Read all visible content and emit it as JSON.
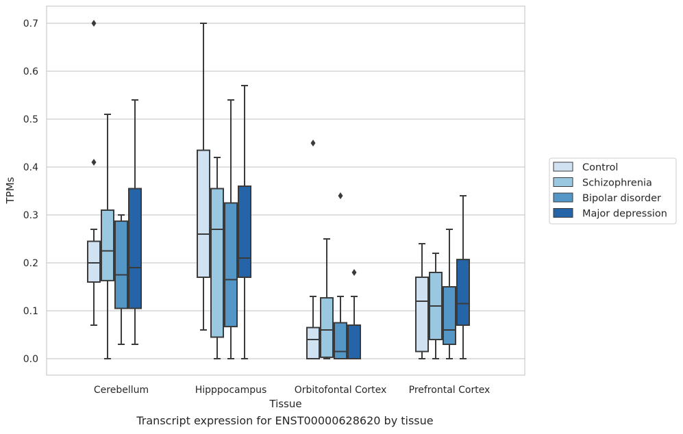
{
  "caption": "Transcript expression for ENST00000628620 by tissue",
  "chart_data": {
    "type": "box",
    "xlabel": "Tissue",
    "ylabel": "TPMs",
    "ylim": [
      -0.035,
      0.735
    ],
    "yticks": [
      "0.0",
      "0.1",
      "0.2",
      "0.3",
      "0.4",
      "0.5",
      "0.6",
      "0.7"
    ],
    "grid": "horizontal",
    "legend_position": "right",
    "categories": [
      "Cerebellum",
      "Hipppocampus",
      "Orbitofontal Cortex",
      "Prefrontal Cortex"
    ],
    "series": [
      {
        "name": "Control",
        "color": "#d0e1f2",
        "boxes": [
          {
            "whislo": 0.07,
            "q1": 0.16,
            "med": 0.2,
            "q3": 0.245,
            "whishi": 0.27,
            "fliers": [
              0.7,
              0.41
            ]
          },
          {
            "whislo": 0.06,
            "q1": 0.17,
            "med": 0.26,
            "q3": 0.435,
            "whishi": 0.7,
            "fliers": []
          },
          {
            "whislo": 0.0,
            "q1": 0.0,
            "med": 0.04,
            "q3": 0.065,
            "whishi": 0.13,
            "fliers": [
              0.45
            ]
          },
          {
            "whislo": 0.0,
            "q1": 0.015,
            "med": 0.12,
            "q3": 0.17,
            "whishi": 0.24,
            "fliers": []
          }
        ]
      },
      {
        "name": "Schizophrenia",
        "color": "#9ac8e0",
        "boxes": [
          {
            "whislo": 0.0,
            "q1": 0.163,
            "med": 0.225,
            "q3": 0.31,
            "whishi": 0.51,
            "fliers": []
          },
          {
            "whislo": 0.0,
            "q1": 0.045,
            "med": 0.27,
            "q3": 0.355,
            "whishi": 0.42,
            "fliers": []
          },
          {
            "whislo": 0.0,
            "q1": 0.003,
            "med": 0.06,
            "q3": 0.127,
            "whishi": 0.25,
            "fliers": []
          },
          {
            "whislo": 0.0,
            "q1": 0.04,
            "med": 0.11,
            "q3": 0.18,
            "whishi": 0.22,
            "fliers": []
          }
        ]
      },
      {
        "name": "Bipolar disorder",
        "color": "#5497c7",
        "boxes": [
          {
            "whislo": 0.03,
            "q1": 0.105,
            "med": 0.175,
            "q3": 0.287,
            "whishi": 0.3,
            "fliers": []
          },
          {
            "whislo": 0.0,
            "q1": 0.067,
            "med": 0.165,
            "q3": 0.325,
            "whishi": 0.54,
            "fliers": []
          },
          {
            "whislo": 0.0,
            "q1": 0.0,
            "med": 0.015,
            "q3": 0.075,
            "whishi": 0.13,
            "fliers": [
              0.34
            ]
          },
          {
            "whislo": 0.0,
            "q1": 0.03,
            "med": 0.06,
            "q3": 0.15,
            "whishi": 0.27,
            "fliers": []
          }
        ]
      },
      {
        "name": "Major depression",
        "color": "#2565a7",
        "boxes": [
          {
            "whislo": 0.03,
            "q1": 0.105,
            "med": 0.19,
            "q3": 0.355,
            "whishi": 0.54,
            "fliers": []
          },
          {
            "whislo": 0.0,
            "q1": 0.17,
            "med": 0.21,
            "q3": 0.36,
            "whishi": 0.57,
            "fliers": []
          },
          {
            "whislo": 0.0,
            "q1": 0.0,
            "med": 0.0,
            "q3": 0.07,
            "whishi": 0.13,
            "fliers": [
              0.18
            ]
          },
          {
            "whislo": 0.0,
            "q1": 0.07,
            "med": 0.115,
            "q3": 0.207,
            "whishi": 0.34,
            "fliers": []
          }
        ]
      }
    ]
  }
}
